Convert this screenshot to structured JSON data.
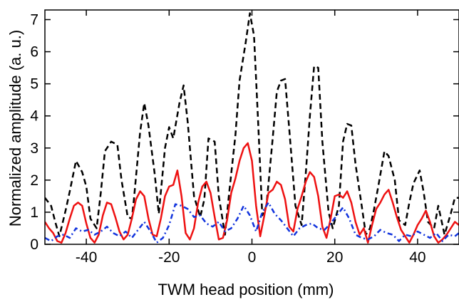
{
  "chart_data": {
    "type": "line",
    "title": "",
    "xlabel": "TWM head position (mm)",
    "ylabel": "Normalized amplitude (a. u.)",
    "xlim": [
      -50,
      50
    ],
    "ylim": [
      0,
      7.3
    ],
    "x_ticks": [
      -40,
      -20,
      0,
      20,
      40
    ],
    "x_tick_labels": [
      "-40",
      "-20",
      "0",
      "20",
      "40"
    ],
    "y_ticks": [
      0,
      1,
      2,
      3,
      4,
      5,
      6,
      7
    ],
    "y_tick_labels": [
      "0",
      "1",
      "2",
      "3",
      "4",
      "5",
      "6",
      "7"
    ],
    "grid": false,
    "legend": "none",
    "series": [
      {
        "color": "#000000",
        "style": "dashed",
        "x": [
          -50,
          -48.5,
          -47.5,
          -46.5,
          -45,
          -44,
          -42.5,
          -41,
          -40,
          -39,
          -37.5,
          -36.5,
          -35.5,
          -34,
          -32.5,
          -31.5,
          -30,
          -29,
          -28.5,
          -27,
          -26,
          -25,
          -23.5,
          -22.5,
          -21,
          -20,
          -19,
          -17.5,
          -16.5,
          -15.5,
          -14,
          -12.5,
          -11.5,
          -10.5,
          -9,
          -8,
          -6.5,
          -5.5,
          -4,
          -3,
          -1.5,
          -0.5,
          0.5,
          1.5,
          2.5,
          3.5,
          5,
          6,
          7,
          8,
          9,
          10.5,
          12,
          13,
          14,
          15,
          16,
          17,
          18.5,
          19.5,
          21,
          22,
          23,
          24,
          25,
          26.5,
          27.5,
          28.5,
          29.5,
          30.5,
          32,
          33,
          34.5,
          35.5,
          37,
          38,
          39,
          40.5,
          41.5,
          42.5,
          44,
          45,
          46.5,
          48,
          49,
          50
        ],
        "y": [
          1.45,
          1.2,
          0.7,
          0.25,
          1.05,
          1.65,
          2.6,
          2.25,
          1.8,
          0.8,
          0.5,
          1.6,
          2.9,
          3.2,
          3.1,
          2.0,
          0.85,
          0.8,
          1.4,
          3.5,
          4.4,
          3.7,
          2.2,
          0.95,
          3.0,
          3.65,
          3.3,
          4.4,
          4.95,
          3.8,
          1.5,
          0.85,
          1.4,
          3.3,
          3.2,
          1.5,
          0.3,
          1.6,
          3.4,
          5.1,
          6.3,
          7.2,
          6.5,
          3.8,
          0.9,
          1.2,
          3.3,
          4.75,
          5.1,
          5.15,
          3.6,
          1.2,
          0.6,
          2.2,
          4.0,
          5.55,
          5.5,
          3.2,
          1.0,
          0.5,
          1.2,
          3.2,
          3.75,
          3.7,
          2.5,
          1.2,
          0.3,
          0.5,
          1.1,
          1.8,
          2.9,
          2.75,
          2.0,
          0.75,
          0.6,
          1.3,
          1.9,
          2.3,
          1.6,
          0.7,
          0.5,
          1.2,
          0.3,
          0.95,
          1.45,
          1.45
        ]
      },
      {
        "color": "#ee1111",
        "style": "solid",
        "x": [
          -50,
          -49,
          -48,
          -47,
          -46,
          -45,
          -44,
          -43,
          -42,
          -41,
          -40,
          -39,
          -38,
          -37,
          -36,
          -35,
          -34,
          -33,
          -32,
          -31,
          -30,
          -29,
          -28,
          -27,
          -26,
          -25,
          -24,
          -23,
          -22,
          -21,
          -20,
          -19,
          -18,
          -17,
          -16,
          -15,
          -14,
          -13,
          -12,
          -11,
          -10,
          -9,
          -8,
          -7,
          -6,
          -5,
          -4,
          -3,
          -2,
          -1,
          0,
          1,
          2,
          3,
          4,
          5,
          6,
          7,
          8,
          9,
          10,
          11,
          12,
          13,
          14,
          15,
          16,
          17,
          18,
          19,
          20,
          21,
          22,
          23,
          24,
          25,
          26,
          27,
          28,
          29,
          30,
          31,
          32,
          33,
          34,
          35,
          36,
          37,
          38,
          39,
          40,
          41,
          42,
          43,
          44,
          45,
          46,
          47,
          48,
          49,
          50
        ],
        "y": [
          0.7,
          0.5,
          0.35,
          0.1,
          0.05,
          0.35,
          0.8,
          1.2,
          1.3,
          1.2,
          0.65,
          0.2,
          0.05,
          0.3,
          0.9,
          1.3,
          1.25,
          0.85,
          0.4,
          0.15,
          0.3,
          0.8,
          1.4,
          1.65,
          1.5,
          0.8,
          0.3,
          0.25,
          0.8,
          1.5,
          1.8,
          1.85,
          2.3,
          1.5,
          0.35,
          0.15,
          0.5,
          1.3,
          1.8,
          1.95,
          1.6,
          0.85,
          0.15,
          0.2,
          0.75,
          1.6,
          2.05,
          2.6,
          3.0,
          3.15,
          2.6,
          1.2,
          0.25,
          0.9,
          1.6,
          1.7,
          1.95,
          1.85,
          1.4,
          0.55,
          0.4,
          1.1,
          1.5,
          1.95,
          2.25,
          2.1,
          1.5,
          0.55,
          0.2,
          0.8,
          1.5,
          1.55,
          1.45,
          1.65,
          1.3,
          0.7,
          0.3,
          0.5,
          0.05,
          0.6,
          1.1,
          1.3,
          1.55,
          1.7,
          1.3,
          0.85,
          0.45,
          0.25,
          0.05,
          0.3,
          0.6,
          0.8,
          1.05,
          0.7,
          0.25,
          0.05,
          0.15,
          0.3,
          0.5,
          0.7,
          0.6
        ]
      },
      {
        "color": "#1133dd",
        "style": "dashdot",
        "x": [
          -50,
          -48.5,
          -47,
          -45.5,
          -44,
          -42.5,
          -41,
          -39.5,
          -38,
          -36.5,
          -35,
          -33.5,
          -32,
          -30.5,
          -29,
          -27.5,
          -26,
          -24.5,
          -23,
          -21.5,
          -20,
          -18.5,
          -17,
          -15.5,
          -14,
          -12.5,
          -11,
          -9.5,
          -8,
          -6.5,
          -5,
          -3.5,
          -2,
          -0.5,
          1,
          2.5,
          4,
          5.5,
          7,
          8.5,
          10,
          11.5,
          13,
          14.5,
          16,
          17.5,
          19,
          20.5,
          22,
          23.5,
          25,
          26.5,
          28,
          29.5,
          31,
          32.5,
          34,
          35.5,
          37,
          38.5,
          40,
          41.5,
          43,
          44.5,
          46,
          47.5,
          49,
          50
        ],
        "y": [
          0.2,
          0.1,
          0.25,
          0.3,
          0.2,
          0.5,
          0.4,
          0.45,
          0.3,
          0.4,
          0.55,
          0.35,
          0.25,
          0.4,
          0.2,
          0.45,
          0.7,
          0.4,
          0.05,
          0.2,
          0.6,
          1.25,
          1.2,
          1.1,
          0.85,
          0.9,
          0.65,
          0.55,
          0.7,
          0.4,
          0.5,
          0.8,
          1.2,
          0.9,
          0.4,
          1.0,
          1.3,
          0.95,
          0.75,
          0.5,
          0.25,
          0.5,
          0.6,
          0.65,
          0.5,
          0.45,
          0.65,
          0.9,
          1.15,
          0.8,
          0.3,
          0.2,
          0.15,
          0.25,
          0.45,
          0.35,
          0.3,
          0.1,
          0.3,
          0.25,
          0.4,
          0.3,
          0.2,
          0.35,
          0.1,
          0.3,
          0.25,
          0.35
        ]
      }
    ]
  }
}
